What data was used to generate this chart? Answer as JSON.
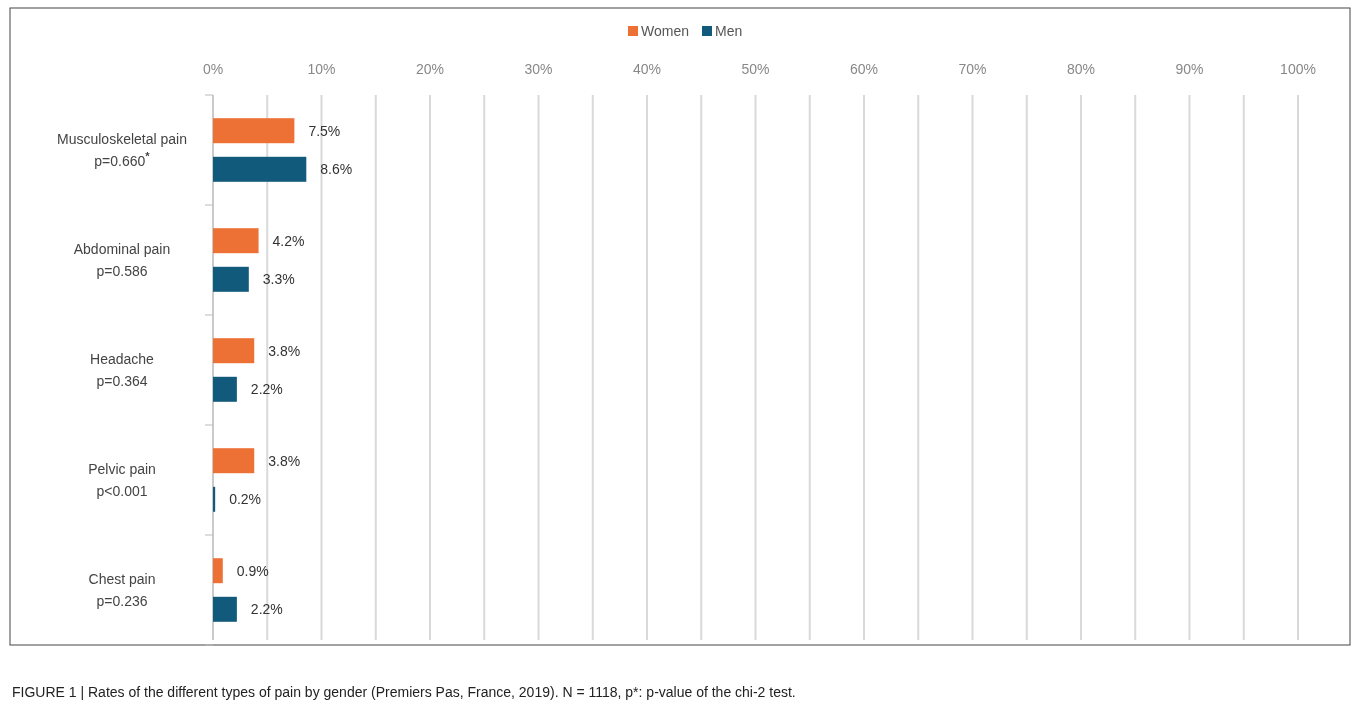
{
  "chart_data": {
    "type": "bar",
    "orientation": "horizontal",
    "categories": [
      "Musculoskeletal pain\np=0.660$^{*}$",
      "Abdominal pain\np=0.586",
      "Headache\np=0.364",
      "Pelvic pain\np<0.001",
      "Chest pain\np=0.236"
    ],
    "series": [
      {
        "name": "Women",
        "color": "#ed7035",
        "values": [
          7.5,
          4.2,
          3.8,
          3.8,
          0.9
        ],
        "value_labels": [
          "7.5%",
          "4.2%",
          "3.8%",
          "3.8%",
          "0.9%"
        ]
      },
      {
        "name": "Men",
        "color": "#125a7c",
        "values": [
          8.6,
          3.3,
          2.2,
          0.2,
          2.2
        ],
        "value_labels": [
          "8.6%",
          "3.3%",
          "2.2%",
          "0.2%",
          "2.2%"
        ]
      }
    ],
    "xlim": [
      0,
      100
    ],
    "xticks": [
      {
        "value": 0,
        "label": "0%"
      },
      {
        "value": 5,
        "label": null
      },
      {
        "value": 10,
        "label": "10%"
      },
      {
        "value": 15,
        "label": null
      },
      {
        "value": 20,
        "label": "20%"
      },
      {
        "value": 25,
        "label": null
      },
      {
        "value": 30,
        "label": "30%"
      },
      {
        "value": 35,
        "label": null
      },
      {
        "value": 40,
        "label": "40%"
      },
      {
        "value": 45,
        "label": null
      },
      {
        "value": 50,
        "label": "50%"
      },
      {
        "value": 55,
        "label": null
      },
      {
        "value": 60,
        "label": "60%"
      },
      {
        "value": 65,
        "label": null
      },
      {
        "value": 70,
        "label": "70%"
      },
      {
        "value": 75,
        "label": null
      },
      {
        "value": 80,
        "label": "80%"
      },
      {
        "value": 85,
        "label": null
      },
      {
        "value": 90,
        "label": "90%"
      },
      {
        "value": 95,
        "label": null
      },
      {
        "value": 100,
        "label": "100%"
      }
    ],
    "grid": true,
    "legend": "top",
    "annotations": [
      "FIGURE 1 | Rates of the different types of pain by gender (Premiers Pas, France, 2019). N = 1118, p*: p-value of the chi-2 test."
    ]
  }
}
